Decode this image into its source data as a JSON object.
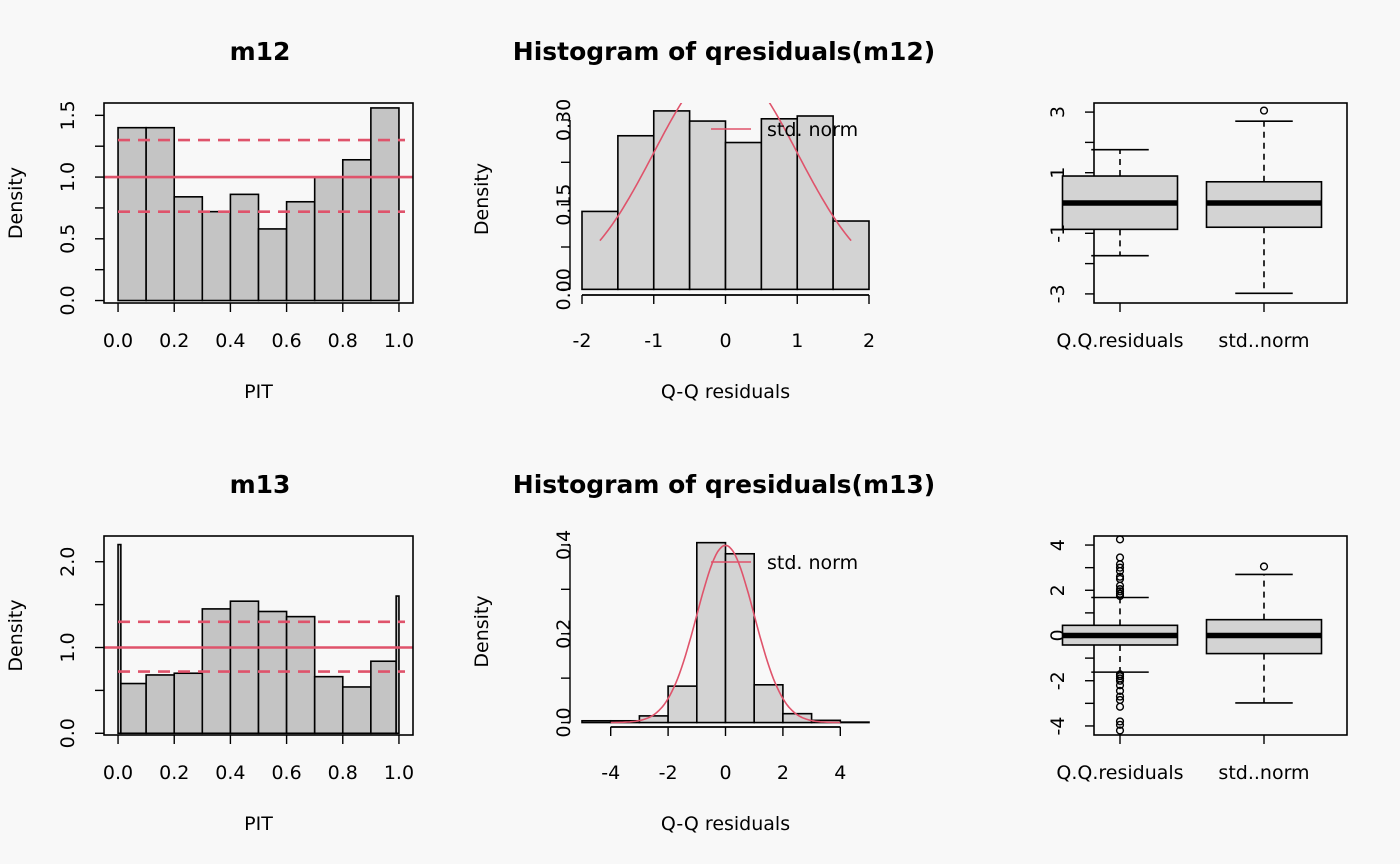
{
  "colors": {
    "background": "#f8f8f8",
    "bar": "#c4c4c4",
    "hist": "#d3d3d3",
    "box": "#d3d3d3",
    "red": "#df536b",
    "ink": "#000000"
  },
  "chart_data": [
    {
      "id": "pit-m12",
      "type": "bar",
      "title": "m12",
      "xlabel": "PIT",
      "ylabel": "Density",
      "xlim": [
        -0.05,
        1.05
      ],
      "ylim": [
        -0.02,
        1.6
      ],
      "xticks": [
        "0.0",
        "0.2",
        "0.4",
        "0.6",
        "0.8",
        "1.0"
      ],
      "yticks": [
        "0.0",
        "0.5",
        "1.0",
        "1.5"
      ],
      "bins": [
        [
          0.0,
          0.1,
          1.4
        ],
        [
          0.1,
          0.2,
          1.4
        ],
        [
          0.2,
          0.3,
          0.84
        ],
        [
          0.3,
          0.4,
          0.72
        ],
        [
          0.4,
          0.5,
          0.86
        ],
        [
          0.5,
          0.6,
          0.58
        ],
        [
          0.6,
          0.7,
          0.8
        ],
        [
          0.7,
          0.8,
          1.0
        ],
        [
          0.8,
          0.9,
          1.14
        ],
        [
          0.9,
          1.0,
          1.56
        ]
      ],
      "ref_lines": {
        "solid": 1.0,
        "dashed": [
          0.72,
          1.3
        ]
      },
      "grid": false
    },
    {
      "id": "hist-m12",
      "type": "bar",
      "title": "Histogram of qresiduals(m12)",
      "xlabel": "Q-Q residuals",
      "ylabel": "Density",
      "xlim": [
        -2.0,
        2.0
      ],
      "ylim": [
        -0.01,
        0.33
      ],
      "xticks": [
        "-2",
        "-1",
        "0",
        "1",
        "2"
      ],
      "yticks": [
        "0.00",
        "0.15",
        "0.30"
      ],
      "bins": [
        [
          -2.0,
          -1.5,
          0.138
        ],
        [
          -1.5,
          -1.0,
          0.272
        ],
        [
          -1.0,
          -0.5,
          0.316
        ],
        [
          -0.5,
          0.0,
          0.298
        ],
        [
          0.0,
          0.5,
          0.26
        ],
        [
          0.5,
          1.0,
          0.302
        ],
        [
          1.0,
          1.5,
          0.307
        ],
        [
          1.5,
          2.0,
          0.121
        ]
      ],
      "curve": {
        "name": "std. norm",
        "from": -1.75,
        "to": 1.75
      },
      "legend": "top-right",
      "grid": false
    },
    {
      "id": "box-m12",
      "type": "boxplot",
      "ylim": [
        -3.3,
        3.3
      ],
      "yticks": [
        "-3",
        "-1",
        "1",
        "3"
      ],
      "boxes": [
        {
          "label": "Q.Q.residuals",
          "whisker_low": -1.74,
          "q1": -0.87,
          "median": 0.0,
          "q3": 0.89,
          "whisker_high": 1.76,
          "outliers": []
        },
        {
          "label": "std..norm",
          "whisker_low": -2.98,
          "q1": -0.8,
          "median": 0.0,
          "q3": 0.7,
          "whisker_high": 2.7,
          "outliers": [
            3.05
          ]
        }
      ],
      "grid": false
    },
    {
      "id": "pit-m13",
      "type": "bar",
      "title": "m13",
      "xlabel": "PIT",
      "ylabel": "Density",
      "xlim": [
        -0.05,
        1.05
      ],
      "ylim": [
        -0.02,
        2.3
      ],
      "xticks": [
        "0.0",
        "0.2",
        "0.4",
        "0.6",
        "0.8",
        "1.0"
      ],
      "yticks": [
        "0.0",
        "1.0",
        "2.0"
      ],
      "bins": [
        [
          0.0,
          0.01,
          2.2
        ],
        [
          0.01,
          0.1,
          0.58
        ],
        [
          0.1,
          0.2,
          0.68
        ],
        [
          0.2,
          0.3,
          0.7
        ],
        [
          0.3,
          0.4,
          1.45
        ],
        [
          0.4,
          0.5,
          1.54
        ],
        [
          0.5,
          0.6,
          1.42
        ],
        [
          0.6,
          0.7,
          1.36
        ],
        [
          0.7,
          0.8,
          0.66
        ],
        [
          0.8,
          0.9,
          0.54
        ],
        [
          0.9,
          0.99,
          0.84
        ],
        [
          0.99,
          1.0,
          1.6
        ]
      ],
      "ref_lines": {
        "solid": 1.0,
        "dashed": [
          0.72,
          1.3
        ]
      },
      "grid": false
    },
    {
      "id": "hist-m13",
      "type": "bar",
      "title": "Histogram of qresiduals(m13)",
      "xlabel": "Q-Q residuals",
      "ylabel": "Density",
      "xlim": [
        -5.0,
        5.0
      ],
      "ylim": [
        -0.01,
        0.42
      ],
      "xticks": [
        "-4",
        "-2",
        "0",
        "2",
        "4"
      ],
      "yticks": [
        "0.0",
        "0.2",
        "0.4"
      ],
      "bins": [
        [
          -5,
          -4,
          0.004
        ],
        [
          -4,
          -3,
          0.004
        ],
        [
          -3,
          -2,
          0.015
        ],
        [
          -2,
          -1,
          0.082
        ],
        [
          -1,
          0,
          0.405
        ],
        [
          0,
          1,
          0.38
        ],
        [
          1,
          2,
          0.085
        ],
        [
          2,
          3,
          0.02
        ],
        [
          3,
          4,
          0.005
        ],
        [
          4,
          5,
          0.001
        ]
      ],
      "curve": {
        "name": "std. norm",
        "from": -4.0,
        "to": 4.0
      },
      "legend": "top-right",
      "grid": false
    },
    {
      "id": "box-m13",
      "type": "boxplot",
      "ylim": [
        -4.4,
        4.4
      ],
      "yticks": [
        "-4",
        "-2",
        "0",
        "2",
        "4"
      ],
      "boxes": [
        {
          "label": "Q.Q.residuals",
          "whisker_low": -1.62,
          "q1": -0.42,
          "median": 0.0,
          "q3": 0.45,
          "whisker_high": 1.68,
          "outliers": [
            1.75,
            1.85,
            1.95,
            2.05,
            2.2,
            2.5,
            2.6,
            2.85,
            3.0,
            3.15,
            3.45,
            4.25,
            -1.72,
            -1.8,
            -1.9,
            -2.0,
            -2.2,
            -2.45,
            -2.7,
            -2.85,
            -3.15,
            -3.8,
            -3.95,
            -4.2
          ]
        },
        {
          "label": "std..norm",
          "whisker_low": -2.98,
          "q1": -0.8,
          "median": 0.0,
          "q3": 0.7,
          "whisker_high": 2.7,
          "outliers": [
            3.05
          ]
        }
      ],
      "grid": false
    }
  ]
}
